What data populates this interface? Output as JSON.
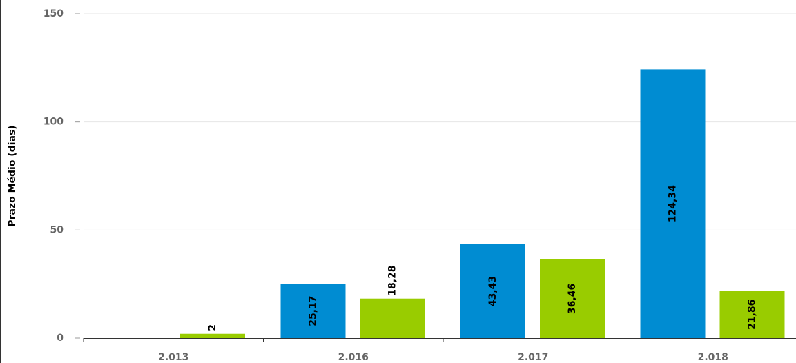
{
  "chart_data": {
    "type": "bar",
    "categories": [
      "2.013",
      "2.016",
      "2.017",
      "2.018"
    ],
    "series": [
      {
        "color": "#008cd2",
        "values": [
          null,
          25.17,
          43.43,
          124.34
        ],
        "value_labels": [
          null,
          "25,17",
          "43,43",
          "124,34"
        ]
      },
      {
        "color": "#99cc00",
        "values": [
          2,
          18.28,
          36.46,
          21.86
        ],
        "value_labels": [
          "2",
          "18,28",
          "36,46",
          "21,86"
        ]
      }
    ],
    "y_label": "Prazo Médio (dias)",
    "ylim": [
      0,
      150
    ],
    "yticks": [
      0,
      50,
      100,
      150
    ],
    "grid": true
  }
}
